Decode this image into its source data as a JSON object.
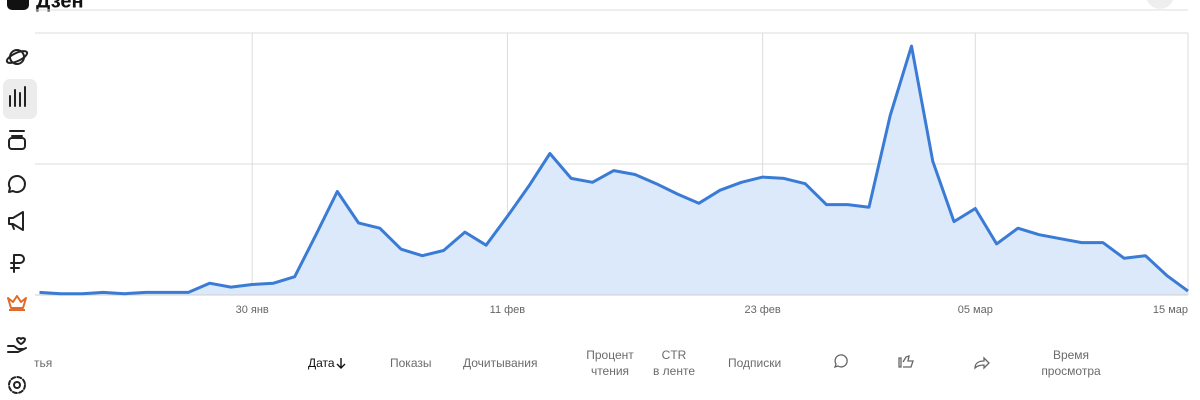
{
  "header": {
    "logo": "Дзен"
  },
  "chart_data": {
    "type": "area",
    "categories": [
      null,
      null,
      null,
      null,
      null,
      null,
      null,
      null,
      null,
      null,
      "30 янв",
      null,
      null,
      null,
      null,
      null,
      null,
      null,
      null,
      null,
      null,
      null,
      "11 фев",
      null,
      null,
      null,
      null,
      null,
      null,
      null,
      null,
      null,
      null,
      null,
      "23 фев",
      null,
      null,
      null,
      null,
      null,
      null,
      null,
      null,
      null,
      "05 мар",
      null,
      null,
      null,
      null,
      null,
      null,
      null,
      null,
      null,
      "15 мар"
    ],
    "values": [
      0.02,
      0.01,
      0.01,
      0.02,
      0.01,
      0.02,
      0.02,
      0.02,
      0.09,
      0.06,
      0.08,
      0.09,
      0.14,
      0.46,
      0.79,
      0.55,
      0.51,
      0.35,
      0.3,
      0.34,
      0.48,
      0.38,
      0.6,
      0.83,
      1.08,
      0.89,
      0.86,
      0.95,
      0.92,
      0.85,
      0.77,
      0.7,
      0.8,
      0.86,
      0.9,
      0.89,
      0.85,
      0.69,
      0.69,
      0.67,
      1.37,
      1.9,
      1.02,
      0.56,
      0.66,
      0.39,
      0.51,
      0.46,
      0.43,
      0.4,
      0.4,
      0.28,
      0.3,
      0.15,
      0.03
    ],
    "color": "#3a7bd5",
    "fill": "#dce9fb",
    "ylim": [
      0,
      2
    ],
    "ygrid": [
      1,
      2
    ]
  },
  "table": {
    "headers": [
      "тья",
      "Дата",
      "Показы",
      "Дочитывания",
      "Процент\nчтения",
      "CTR\nв ленте",
      "Подписки",
      "Время\nпросмотра"
    ]
  }
}
